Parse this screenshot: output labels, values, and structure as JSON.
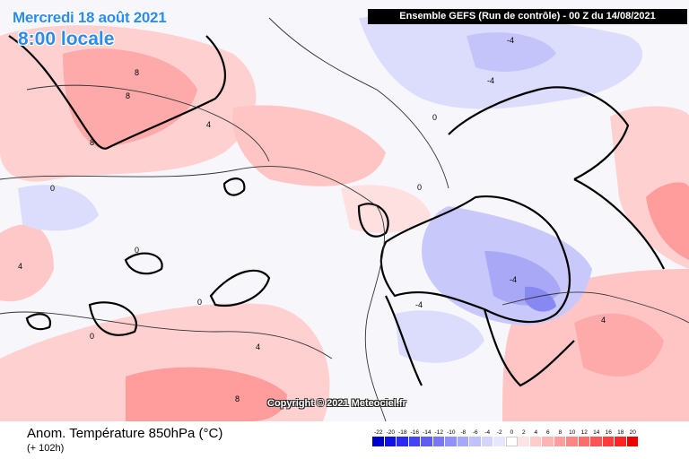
{
  "header": {
    "date": "Mercredi 18 août 2021",
    "local_time": "8:00 locale",
    "run_info": "Ensemble GEFS  (Run de contrôle)  -  00 Z du 14/08/2021"
  },
  "copyright": "Copyright © 2021 Meteociel.fr",
  "footer": {
    "variable": "Anom. Température 850hPa (°C)",
    "lead_time": "(+ 102h)"
  },
  "legend": {
    "ticks": [
      "-22",
      "-20",
      "-18",
      "-16",
      "-14",
      "-12",
      "-10",
      "-8",
      "-6",
      "-4",
      "-2",
      "0",
      "2",
      "4",
      "6",
      "8",
      "10",
      "12",
      "14",
      "16",
      "18",
      "20"
    ],
    "colors": [
      "#0000cc",
      "#1010e8",
      "#2a2af0",
      "#4444f2",
      "#5e5ef4",
      "#7878f6",
      "#9090f8",
      "#a8a8fa",
      "#c0c0fc",
      "#d4d4fd",
      "#e6e6fe",
      "#ffffff",
      "#ffe4e4",
      "#ffcccc",
      "#ffb4b4",
      "#ff9c9c",
      "#ff8484",
      "#ff6c6c",
      "#ff5454",
      "#ff3c3c",
      "#ff2424",
      "#ee0000"
    ]
  },
  "contour_labels": [
    "0",
    "4",
    "8",
    "-4"
  ]
}
